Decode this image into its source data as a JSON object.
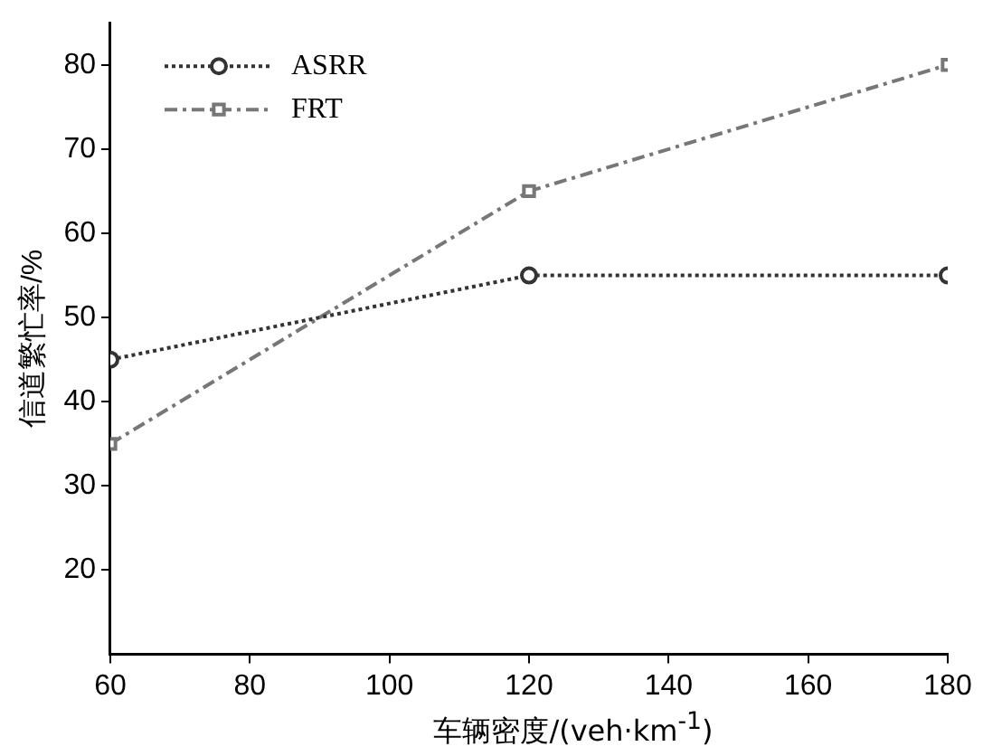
{
  "chart_data": {
    "type": "line",
    "xlabel": "车辆密度/(veh·km$^{-1}$)",
    "ylabel": "信道繁忙率/%",
    "x": [
      60,
      120,
      180
    ],
    "series": [
      {
        "name": "ASRR",
        "color": "#333333",
        "values": [
          45,
          55,
          55
        ],
        "marker": "circle",
        "line_style": "dotted"
      },
      {
        "name": "FRT",
        "color": "#777777",
        "values": [
          35,
          65,
          80
        ],
        "marker": "square",
        "line_style": "dashed"
      }
    ],
    "xlim": [
      60,
      180
    ],
    "xticks": [
      60,
      80,
      100,
      120,
      140,
      160,
      180
    ],
    "ylim": [
      10,
      85
    ],
    "yticks": [
      20,
      30,
      40,
      50,
      60,
      70,
      80
    ],
    "grid": false,
    "legend": "top left"
  }
}
